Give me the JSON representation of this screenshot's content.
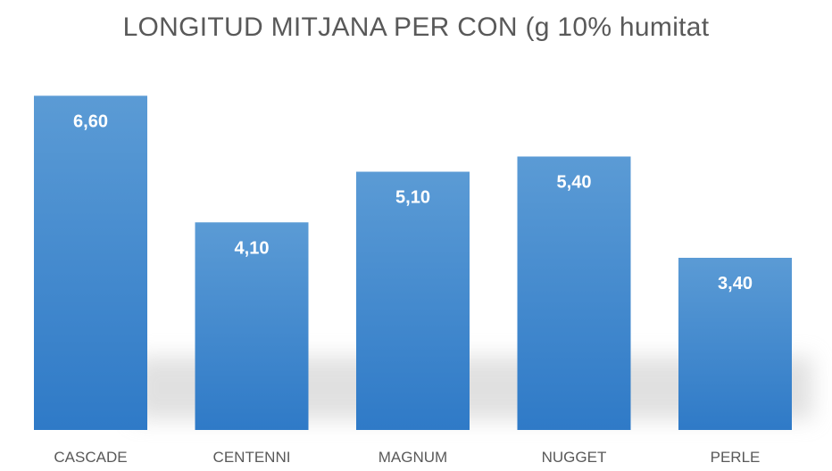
{
  "chart_data": {
    "type": "bar",
    "title": "LONGITUD MITJANA PER CON (g 10% humitat",
    "categories": [
      "CASCADE",
      "CENTENNI",
      "MAGNUM",
      "NUGGET",
      "PERLE"
    ],
    "values": [
      6.6,
      4.1,
      5.1,
      5.4,
      3.4
    ],
    "data_labels": [
      "6,60",
      "4,10",
      "5,10",
      "5,40",
      "3,40"
    ],
    "ylim": [
      0,
      6.8
    ],
    "grid": false,
    "legend": "none",
    "colors": {
      "bar_top": "#5b9bd5",
      "bar_bottom": "#2f7ac7",
      "label_text": "#ffffff",
      "axis_text": "#595959"
    }
  }
}
